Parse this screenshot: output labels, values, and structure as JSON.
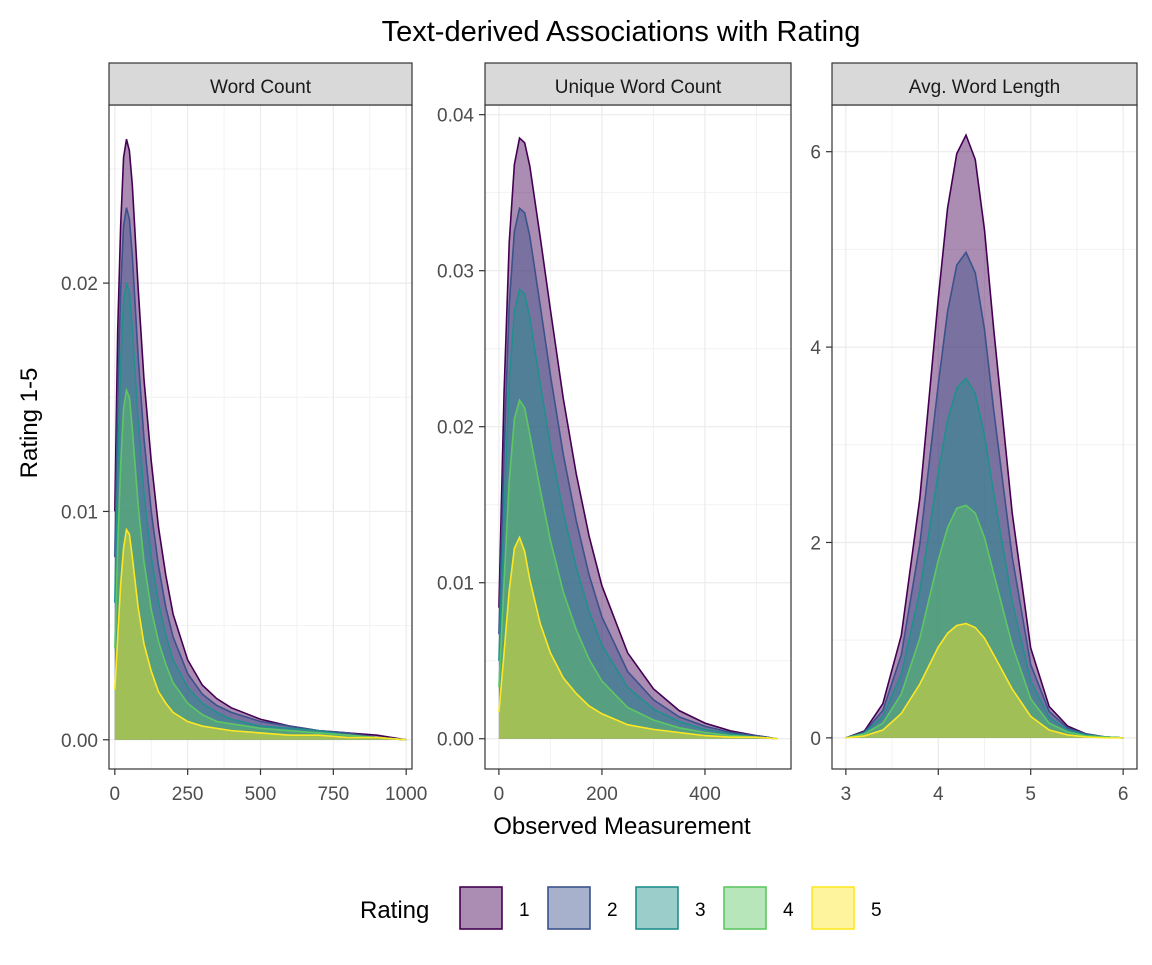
{
  "chart_data": {
    "type": "area",
    "title": "Text-derived Associations with Rating",
    "xlabel": "Observed Measurement",
    "ylabel": "Rating 1-5",
    "stacked": true,
    "facet_scales": "free",
    "grid": true,
    "legend": {
      "title": "Rating",
      "placement": "bottom",
      "entries": [
        "1",
        "2",
        "3",
        "4",
        "5"
      ]
    },
    "colors": {
      "1": "#440154",
      "2": "#3B528B",
      "3": "#21908C",
      "4": "#5DC863",
      "5": "#FDE725"
    },
    "fill_alpha": 0.45,
    "panels": [
      {
        "facet": "Word Count",
        "xlim": [
          0,
          1000
        ],
        "ylim": [
          0,
          0.027
        ],
        "x_ticks": [
          "0",
          "250",
          "500",
          "750",
          "1000"
        ],
        "x_tick_values": [
          0,
          250,
          500,
          750,
          1000
        ],
        "y_ticks": [
          "0.00",
          "0.01",
          "0.02"
        ],
        "y_tick_values": [
          0,
          0.01,
          0.02
        ],
        "x": [
          0,
          10,
          20,
          30,
          40,
          50,
          60,
          80,
          100,
          125,
          150,
          175,
          200,
          250,
          300,
          350,
          400,
          500,
          600,
          700,
          800,
          900,
          1000
        ],
        "series": [
          {
            "name": "5",
            "values": [
              0.0022,
              0.0045,
              0.0068,
              0.0084,
              0.0092,
              0.009,
              0.008,
              0.0058,
              0.0042,
              0.003,
              0.0021,
              0.0016,
              0.0012,
              0.0008,
              0.0006,
              0.0005,
              0.0004,
              0.0003,
              0.0002,
              0.0002,
              0.0001,
              0.0001,
              0.0
            ]
          },
          {
            "name": "4",
            "values": [
              0.004,
              0.0085,
              0.012,
              0.0145,
              0.0153,
              0.015,
              0.0136,
              0.0103,
              0.0078,
              0.0057,
              0.0043,
              0.0033,
              0.0025,
              0.0016,
              0.0011,
              0.0008,
              0.0007,
              0.0005,
              0.0004,
              0.0003,
              0.0002,
              0.0001,
              0.0
            ]
          },
          {
            "name": "3",
            "values": [
              0.006,
              0.012,
              0.0165,
              0.0192,
              0.02,
              0.0196,
              0.018,
              0.014,
              0.0108,
              0.008,
              0.006,
              0.0046,
              0.0035,
              0.0023,
              0.0016,
              0.0012,
              0.0009,
              0.0006,
              0.0005,
              0.0004,
              0.0002,
              0.0001,
              0.0
            ]
          },
          {
            "name": "2",
            "values": [
              0.008,
              0.015,
              0.0197,
              0.0225,
              0.0233,
              0.0228,
              0.0212,
              0.0168,
              0.0132,
              0.01,
              0.0076,
              0.0058,
              0.0045,
              0.0029,
              0.002,
              0.0015,
              0.0012,
              0.0008,
              0.0006,
              0.0004,
              0.0003,
              0.0001,
              0.0
            ]
          },
          {
            "name": "1",
            "values": [
              0.01,
              0.018,
              0.0225,
              0.0255,
              0.0263,
              0.0258,
              0.0243,
              0.0198,
              0.0158,
              0.0122,
              0.0093,
              0.0072,
              0.0055,
              0.0035,
              0.0024,
              0.0018,
              0.0014,
              0.0009,
              0.0006,
              0.0004,
              0.0003,
              0.0002,
              0.0
            ]
          }
        ]
      },
      {
        "facet": "Unique Word Count",
        "xlim": [
          0,
          540
        ],
        "ylim": [
          0,
          0.04
        ],
        "x_ticks": [
          "0",
          "200",
          "400"
        ],
        "x_tick_values": [
          0,
          200,
          400
        ],
        "y_ticks": [
          "0.00",
          "0.01",
          "0.02",
          "0.03",
          "0.04"
        ],
        "y_tick_values": [
          0,
          0.01,
          0.02,
          0.03,
          0.04
        ],
        "x": [
          0,
          10,
          20,
          30,
          40,
          50,
          60,
          80,
          100,
          125,
          150,
          175,
          200,
          250,
          300,
          350,
          400,
          450,
          500,
          540
        ],
        "series": [
          {
            "name": "5",
            "values": [
              0.0017,
              0.0055,
              0.0095,
              0.0122,
              0.0129,
              0.012,
              0.0102,
              0.0074,
              0.0055,
              0.0039,
              0.0029,
              0.0021,
              0.0016,
              0.0009,
              0.0006,
              0.0004,
              0.0002,
              0.0001,
              0.0001,
              0.0
            ]
          },
          {
            "name": "4",
            "values": [
              0.0033,
              0.01,
              0.0165,
              0.0205,
              0.0217,
              0.0212,
              0.0195,
              0.016,
              0.0127,
              0.0094,
              0.007,
              0.0051,
              0.0037,
              0.002,
              0.0012,
              0.0007,
              0.0004,
              0.0002,
              0.0001,
              0.0
            ]
          },
          {
            "name": "3",
            "values": [
              0.005,
              0.0145,
              0.0228,
              0.0274,
              0.0288,
              0.0285,
              0.027,
              0.0228,
              0.0188,
              0.0145,
              0.011,
              0.0082,
              0.006,
              0.0033,
              0.0019,
              0.0011,
              0.0006,
              0.0003,
              0.0001,
              0.0
            ]
          },
          {
            "name": "2",
            "values": [
              0.0067,
              0.0185,
              0.0278,
              0.0325,
              0.034,
              0.0337,
              0.0322,
              0.0278,
              0.0233,
              0.0182,
              0.014,
              0.0105,
              0.0078,
              0.0043,
              0.0025,
              0.0014,
              0.0008,
              0.0004,
              0.0002,
              0.0
            ]
          },
          {
            "name": "1",
            "values": [
              0.0084,
              0.0222,
              0.0318,
              0.0368,
              0.0385,
              0.0382,
              0.0367,
              0.0322,
              0.0275,
              0.0218,
              0.017,
              0.013,
              0.0098,
              0.0055,
              0.0032,
              0.0018,
              0.001,
              0.0005,
              0.0002,
              0.0
            ]
          }
        ]
      },
      {
        "facet": "Avg. Word Length",
        "xlim": [
          3,
          6
        ],
        "ylim": [
          0,
          6.3
        ],
        "x_ticks": [
          "3",
          "4",
          "5",
          "6"
        ],
        "x_tick_values": [
          3,
          4,
          5,
          6
        ],
        "y_ticks": [
          "0",
          "2",
          "4",
          "6"
        ],
        "y_tick_values": [
          0,
          2,
          4,
          6
        ],
        "x": [
          3.0,
          3.2,
          3.4,
          3.6,
          3.8,
          4.0,
          4.1,
          4.2,
          4.3,
          4.4,
          4.5,
          4.6,
          4.8,
          5.0,
          5.2,
          5.4,
          5.6,
          5.8,
          6.0
        ],
        "series": [
          {
            "name": "5",
            "values": [
              0.0,
              0.02,
              0.08,
              0.25,
              0.55,
              0.93,
              1.07,
              1.15,
              1.17,
              1.13,
              1.02,
              0.85,
              0.5,
              0.22,
              0.08,
              0.03,
              0.01,
              0.0,
              0.0
            ]
          },
          {
            "name": "4",
            "values": [
              0.0,
              0.04,
              0.15,
              0.45,
              1.02,
              1.82,
              2.15,
              2.35,
              2.38,
              2.3,
              2.05,
              1.68,
              0.95,
              0.4,
              0.15,
              0.06,
              0.02,
              0.01,
              0.0
            ]
          },
          {
            "name": "3",
            "values": [
              0.0,
              0.05,
              0.22,
              0.65,
              1.5,
              2.72,
              3.25,
              3.58,
              3.68,
              3.52,
              3.1,
              2.5,
              1.4,
              0.58,
              0.21,
              0.08,
              0.03,
              0.01,
              0.0
            ]
          },
          {
            "name": "2",
            "values": [
              0.0,
              0.06,
              0.28,
              0.85,
              1.98,
              3.62,
              4.36,
              4.84,
              4.97,
              4.76,
              4.18,
              3.35,
              1.85,
              0.75,
              0.27,
              0.1,
              0.04,
              0.01,
              0.0
            ]
          },
          {
            "name": "1",
            "values": [
              0.0,
              0.07,
              0.35,
              1.05,
              2.45,
              4.5,
              5.42,
              5.98,
              6.17,
              5.92,
              5.2,
              4.18,
              2.3,
              0.92,
              0.32,
              0.12,
              0.04,
              0.01,
              0.0
            ]
          }
        ]
      }
    ]
  }
}
